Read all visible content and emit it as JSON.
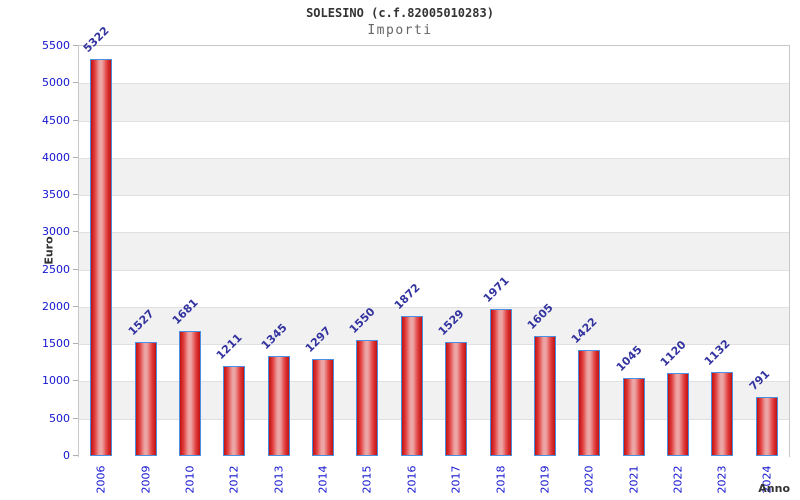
{
  "chart_data": {
    "type": "bar",
    "title": "SOLESINO (c.f.82005010283)",
    "subtitle": "Importi",
    "xlabel": "Anno",
    "ylabel": "Euro",
    "categories": [
      "2006",
      "2009",
      "2010",
      "2012",
      "2013",
      "2014",
      "2015",
      "2016",
      "2017",
      "2018",
      "2019",
      "2020",
      "2021",
      "2022",
      "2023",
      "2024"
    ],
    "values": [
      5322,
      1527,
      1681,
      1211,
      1345,
      1297,
      1550,
      1872,
      1529,
      1971,
      1605,
      1422,
      1045,
      1120,
      1132,
      791
    ],
    "ylim": [
      0,
      5500
    ],
    "ytick_step": 500,
    "legend_position": "none",
    "grid": "alternating-horizontal-bands",
    "value_label_style": "rotated-45-above-bar",
    "category_label_style": "rotated-90-vertical"
  },
  "colors": {
    "bar_fill_dark": "#c01212",
    "bar_fill_mid": "#e13b3b",
    "bar_fill_light": "#eda4a4",
    "bar_border": "#4a90e2",
    "axis_tick_text": "#1515d0",
    "value_label_text": "#3333a0",
    "axis_title_text": "#333333",
    "band_gray": "#f1f1f1",
    "band_white": "#ffffff",
    "band_line": "#e0e0e0",
    "plot_border": "#c8c8c8",
    "title_text": "#333333",
    "subtitle_text": "#666666"
  }
}
